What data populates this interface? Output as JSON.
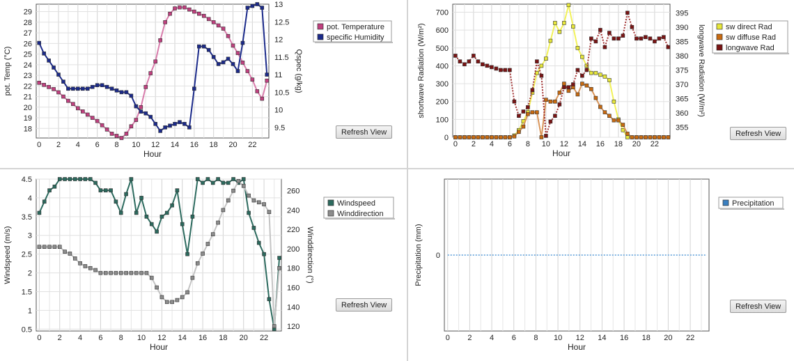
{
  "refresh_label": "Refresh View",
  "chart_data": [
    {
      "id": "temp",
      "type": "line",
      "xlabel": "Hour",
      "ylabel_left": "pot. Temp (°C)",
      "ylabel_right": "Qspec (g/kg)",
      "x_ticks": [
        "0",
        "2",
        "4",
        "6",
        "8",
        "10",
        "12",
        "14",
        "16",
        "18",
        "20",
        "22"
      ],
      "y_left_ticks": [
        "18",
        "19",
        "20",
        "21",
        "22",
        "23",
        "24",
        "25",
        "26",
        "27",
        "28",
        "29"
      ],
      "y_right_ticks": [
        "9.5",
        "10",
        "10.5",
        "11",
        "11.5",
        "12",
        "12.5",
        "13"
      ],
      "legend": [
        "pot. Temperature",
        "specific Humidity"
      ],
      "xlim": [
        -0.3,
        23.7
      ],
      "ylim_left": [
        17.1,
        29.7
      ],
      "ylim_right": [
        9.2,
        13.0
      ],
      "series": [
        {
          "name": "pot. Temperature",
          "axis": "left",
          "color": "#c0407f",
          "line": "#d87cab",
          "dash": false,
          "x": [
            0,
            0.5,
            1,
            1.5,
            2,
            2.5,
            3,
            3.5,
            4,
            4.5,
            5,
            5.5,
            6,
            6.5,
            7,
            7.5,
            8,
            8.5,
            9,
            9.5,
            10,
            10.5,
            11,
            11.5,
            12,
            12.5,
            13,
            13.5,
            14,
            14.5,
            15,
            15.5,
            16,
            16.5,
            17,
            17.5,
            18,
            18.5,
            19,
            19.5,
            20,
            20.5,
            21,
            21.5,
            22,
            22.5,
            23,
            23.5
          ],
          "values": [
            22.3,
            22.1,
            21.9,
            21.7,
            21.4,
            21.0,
            20.6,
            20.3,
            19.9,
            19.6,
            19.3,
            19.0,
            18.7,
            18.3,
            17.9,
            17.5,
            17.3,
            17.1,
            17.5,
            18.2,
            18.8,
            20.0,
            21.9,
            23.2,
            24.3,
            26.3,
            28.0,
            28.8,
            29.3,
            29.4,
            29.4,
            29.2,
            29.0,
            28.8,
            28.6,
            28.3,
            28.0,
            27.7,
            27.4,
            26.7,
            25.8,
            25.1,
            24.2,
            23.4,
            22.6,
            21.5,
            20.8,
            22.5
          ]
        },
        {
          "name": "specific Humidity",
          "axis": "right",
          "color": "#1b2a8a",
          "line": "#1b2a8a",
          "dash": false,
          "x": [
            0,
            0.5,
            1,
            1.5,
            2,
            2.5,
            3,
            3.5,
            4,
            4.5,
            5,
            5.5,
            6,
            6.5,
            7,
            7.5,
            8,
            8.5,
            9,
            9.5,
            10,
            10.5,
            11,
            11.5,
            12,
            12.5,
            13,
            13.5,
            14,
            14.5,
            15,
            15.5,
            16,
            16.5,
            17,
            17.5,
            18,
            18.5,
            19,
            19.5,
            20,
            20.5,
            21,
            21.5,
            22,
            22.5,
            23,
            23.5
          ],
          "values": [
            11.9,
            11.6,
            11.4,
            11.2,
            11.0,
            10.8,
            10.6,
            10.6,
            10.6,
            10.6,
            10.6,
            10.65,
            10.7,
            10.7,
            10.65,
            10.6,
            10.55,
            10.5,
            10.5,
            10.4,
            10.1,
            9.95,
            9.9,
            9.8,
            9.6,
            9.4,
            9.5,
            9.55,
            9.6,
            9.65,
            9.6,
            9.5,
            10.6,
            11.8,
            11.8,
            11.7,
            11.5,
            11.3,
            11.35,
            11.45,
            11.3,
            11.1,
            11.9,
            12.9,
            12.95,
            13.0,
            12.9,
            11.0
          ]
        }
      ]
    },
    {
      "id": "rad",
      "type": "line",
      "xlabel": "Hour",
      "ylabel_left": "shortwave Radiation (W/m²)",
      "ylabel_right": "longwave Radiation (W/m²)",
      "x_ticks": [
        "0",
        "2",
        "4",
        "6",
        "8",
        "10",
        "12",
        "14",
        "16",
        "18",
        "20",
        "22"
      ],
      "y_left_ticks": [
        "0",
        "100",
        "200",
        "300",
        "400",
        "500",
        "600",
        "700"
      ],
      "y_right_ticks": [
        "355",
        "360",
        "365",
        "370",
        "375",
        "380",
        "385",
        "390",
        "395"
      ],
      "legend": [
        "sw direct Rad",
        "sw diffuse Rad",
        "longwave Rad"
      ],
      "xlim": [
        -0.3,
        23.7
      ],
      "ylim_left": [
        0,
        745
      ],
      "ylim_right": [
        351.5,
        398
      ],
      "series": [
        {
          "name": "sw direct Rad",
          "axis": "left",
          "color": "#e6e63a",
          "line": "#f2f25a",
          "dash": false,
          "x": [
            0,
            0.5,
            1,
            1.5,
            2,
            2.5,
            3,
            3.5,
            4,
            4.5,
            5,
            5.5,
            6,
            6.5,
            7,
            7.5,
            8,
            8.5,
            9,
            9.5,
            10,
            10.5,
            11,
            11.5,
            12,
            12.5,
            13,
            13.5,
            14,
            14.5,
            15,
            15.5,
            16,
            16.5,
            17,
            17.5,
            18,
            18.5,
            19,
            19.5,
            20,
            20.5,
            21,
            21.5,
            22,
            22.5,
            23,
            23.5
          ],
          "values": [
            0,
            0,
            0,
            0,
            0,
            0,
            0,
            0,
            0,
            0,
            0,
            0,
            0,
            10,
            40,
            90,
            140,
            250,
            360,
            400,
            440,
            540,
            640,
            590,
            640,
            740,
            620,
            500,
            450,
            400,
            360,
            360,
            350,
            340,
            320,
            200,
            100,
            40,
            0,
            0,
            0,
            0,
            0,
            0,
            0,
            0,
            0,
            0
          ]
        },
        {
          "name": "sw diffuse Rad",
          "axis": "left",
          "color": "#c86a10",
          "line": "#d9955a",
          "dash": false,
          "x": [
            0,
            0.5,
            1,
            1.5,
            2,
            2.5,
            3,
            3.5,
            4,
            4.5,
            5,
            5.5,
            6,
            6.5,
            7,
            7.5,
            8,
            8.5,
            9,
            9.5,
            10,
            10.5,
            11,
            11.5,
            12,
            12.5,
            13,
            13.5,
            14,
            14.5,
            15,
            15.5,
            16,
            16.5,
            17,
            17.5,
            18,
            18.5,
            19,
            19.5,
            20,
            20.5,
            21,
            21.5,
            22,
            22.5,
            23,
            23.5
          ],
          "values": [
            0,
            0,
            0,
            0,
            0,
            0,
            0,
            0,
            0,
            0,
            0,
            0,
            0,
            5,
            30,
            60,
            130,
            140,
            140,
            0,
            210,
            200,
            200,
            250,
            300,
            260,
            280,
            240,
            300,
            290,
            270,
            220,
            170,
            140,
            120,
            95,
            95,
            70,
            20,
            0,
            0,
            0,
            0,
            0,
            0,
            0,
            0,
            0
          ]
        },
        {
          "name": "longwave Rad",
          "axis": "right",
          "color": "#7a1414",
          "line": "#a03030",
          "dash": true,
          "x": [
            0,
            0.5,
            1,
            1.5,
            2,
            2.5,
            3,
            3.5,
            4,
            4.5,
            5,
            5.5,
            6,
            6.5,
            7,
            7.5,
            8,
            8.5,
            9,
            9.5,
            10,
            10.5,
            11,
            11.5,
            12,
            12.5,
            13,
            13.5,
            14,
            14.5,
            15,
            15.5,
            16,
            16.5,
            17,
            17.5,
            18,
            18.5,
            19,
            19.5,
            20,
            20.5,
            21,
            21.5,
            22,
            22.5,
            23,
            23.5
          ],
          "values": [
            380,
            378,
            377,
            378,
            380,
            378,
            377,
            376.5,
            376,
            375.5,
            375,
            375,
            375,
            364,
            359,
            360.5,
            362,
            368,
            378,
            373,
            352,
            357,
            359,
            363,
            369,
            369,
            370,
            375,
            373,
            375,
            386,
            385,
            389,
            383,
            388,
            386,
            386,
            387,
            395,
            390,
            386,
            386,
            386.5,
            386,
            385,
            386,
            386.5,
            383
          ]
        }
      ]
    },
    {
      "id": "wind",
      "type": "line",
      "xlabel": "Hour",
      "ylabel_left": "Windspeed (m/s)",
      "ylabel_right": "Winddirection  (°)",
      "x_ticks": [
        "0",
        "2",
        "4",
        "6",
        "8",
        "10",
        "12",
        "14",
        "16",
        "18",
        "20",
        "22"
      ],
      "y_left_ticks": [
        "0.5",
        "1",
        "1.5",
        "2",
        "2.5",
        "3",
        "3.5",
        "4",
        "4.5"
      ],
      "y_right_ticks": [
        "120",
        "140",
        "160",
        "180",
        "200",
        "220",
        "240",
        "260"
      ],
      "legend": [
        "Windspeed",
        "Winddirection"
      ],
      "xlim": [
        -0.3,
        23.7
      ],
      "ylim_left": [
        0.45,
        4.5
      ],
      "ylim_right": [
        115,
        272
      ],
      "series": [
        {
          "name": "Windspeed",
          "axis": "left",
          "color": "#2c6a5e",
          "line": "#2c6a5e",
          "dash": false,
          "x": [
            0,
            0.5,
            1,
            1.5,
            2,
            2.5,
            3,
            3.5,
            4,
            4.5,
            5,
            5.5,
            6,
            6.5,
            7,
            7.5,
            8,
            8.5,
            9,
            9.5,
            10,
            10.5,
            11,
            11.5,
            12,
            12.5,
            13,
            13.5,
            14,
            14.5,
            15,
            15.5,
            16,
            16.5,
            17,
            17.5,
            18,
            18.5,
            19,
            19.5,
            20,
            20.5,
            21,
            21.5,
            22,
            22.5,
            23,
            23.5
          ],
          "values": [
            3.6,
            3.9,
            4.2,
            4.3,
            4.5,
            4.5,
            4.5,
            4.5,
            4.5,
            4.5,
            4.5,
            4.4,
            4.2,
            4.2,
            4.2,
            3.9,
            3.6,
            4.1,
            4.5,
            3.6,
            4.0,
            3.5,
            3.3,
            3.1,
            3.5,
            3.6,
            3.8,
            4.2,
            3.3,
            2.5,
            3.5,
            4.5,
            4.4,
            4.5,
            4.4,
            4.5,
            4.4,
            4.4,
            4.5,
            4.4,
            4.5,
            3.6,
            3.2,
            2.8,
            2.5,
            1.3,
            0.5,
            2.4
          ]
        },
        {
          "name": "Winddirection",
          "axis": "right",
          "color": "#8c8c8c",
          "line": "#c4c4c4",
          "dash": false,
          "x": [
            0,
            0.5,
            1,
            1.5,
            2,
            2.5,
            3,
            3.5,
            4,
            4.5,
            5,
            5.5,
            6,
            6.5,
            7,
            7.5,
            8,
            8.5,
            9,
            9.5,
            10,
            10.5,
            11,
            11.5,
            12,
            12.5,
            13,
            13.5,
            14,
            14.5,
            15,
            15.5,
            16,
            16.5,
            17,
            17.5,
            18,
            18.5,
            19,
            19.5,
            20,
            20.5,
            21,
            21.5,
            22,
            22.5,
            23,
            23.5
          ],
          "values": [
            202,
            202,
            202,
            202,
            202,
            197,
            195,
            190,
            185,
            182,
            180,
            178,
            175,
            175,
            175,
            175,
            175,
            175,
            175,
            175,
            175,
            175,
            170,
            160,
            150,
            145,
            145,
            147,
            150,
            155,
            170,
            185,
            195,
            205,
            215,
            227,
            240,
            250,
            260,
            270,
            265,
            255,
            250,
            248,
            246,
            238,
            120,
            180
          ]
        }
      ]
    },
    {
      "id": "precip",
      "type": "line",
      "xlabel": "Hour",
      "ylabel_left": "Precipitation (mm)",
      "ylabel_right": "",
      "x_ticks": [
        "0",
        "2",
        "4",
        "6",
        "8",
        "10",
        "12",
        "14",
        "16",
        "18",
        "20",
        "22"
      ],
      "y_left_ticks": [
        "0"
      ],
      "y_right_ticks": [],
      "legend": [
        "Precipitation"
      ],
      "xlim": [
        -0.3,
        23.7
      ],
      "ylim_left": [
        -1,
        1
      ],
      "series": [
        {
          "name": "Precipitation",
          "axis": "left",
          "color": "#3a7fc0",
          "line": "#7fb2e0",
          "dash": true,
          "markers": false,
          "x": [
            0,
            23.5
          ],
          "values": [
            0,
            0
          ]
        }
      ]
    }
  ]
}
